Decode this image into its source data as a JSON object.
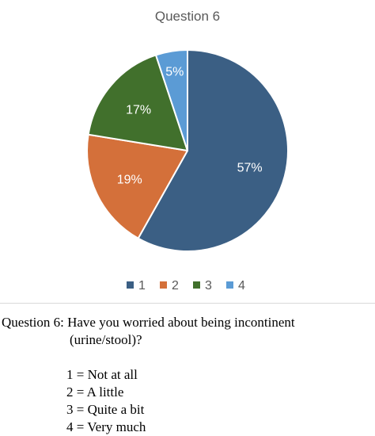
{
  "chart_data": {
    "type": "pie",
    "title": "Question 6",
    "categories": [
      "1",
      "2",
      "3",
      "4"
    ],
    "values": [
      57,
      19,
      17,
      5
    ],
    "value_labels": [
      "57%",
      "19%",
      "17%",
      "5%"
    ],
    "colors": [
      "#3b5f84",
      "#d4703a",
      "#41702c",
      "#5b9bd5"
    ],
    "legend": {
      "placement": "bottom",
      "entries": [
        "1",
        "2",
        "3",
        "4"
      ]
    },
    "start_at": "top",
    "direction": "clockwise"
  },
  "caption": {
    "question": "Question 6: Have you worried about being incontinent",
    "question_continued": "(urine/stool)?",
    "scale": [
      "1 = Not at all",
      "2 = A little",
      "3 = Quite a bit",
      "4 = Very much"
    ]
  }
}
